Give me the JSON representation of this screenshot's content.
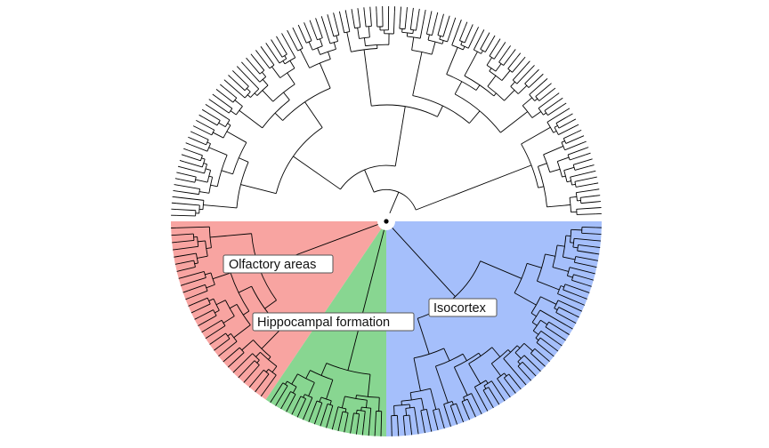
{
  "diagram": {
    "type": "circular-dendrogram",
    "branch_color": "#000000",
    "clades": [
      {
        "key": "olfactory",
        "label": "Olfactory areas",
        "color": "#F8A4A1",
        "from_deg": 180,
        "to_deg": 236,
        "leaves": 28
      },
      {
        "key": "hippocampal",
        "label": "Hippocampal formation",
        "color": "#88D691",
        "from_deg": 236,
        "to_deg": 270,
        "leaves": 20
      },
      {
        "key": "isocortex",
        "label": "Isocortex",
        "color": "#A5BFFB",
        "from_deg": 270,
        "to_deg": 360,
        "leaves": 50
      }
    ],
    "unshaded_leaves": 108
  }
}
